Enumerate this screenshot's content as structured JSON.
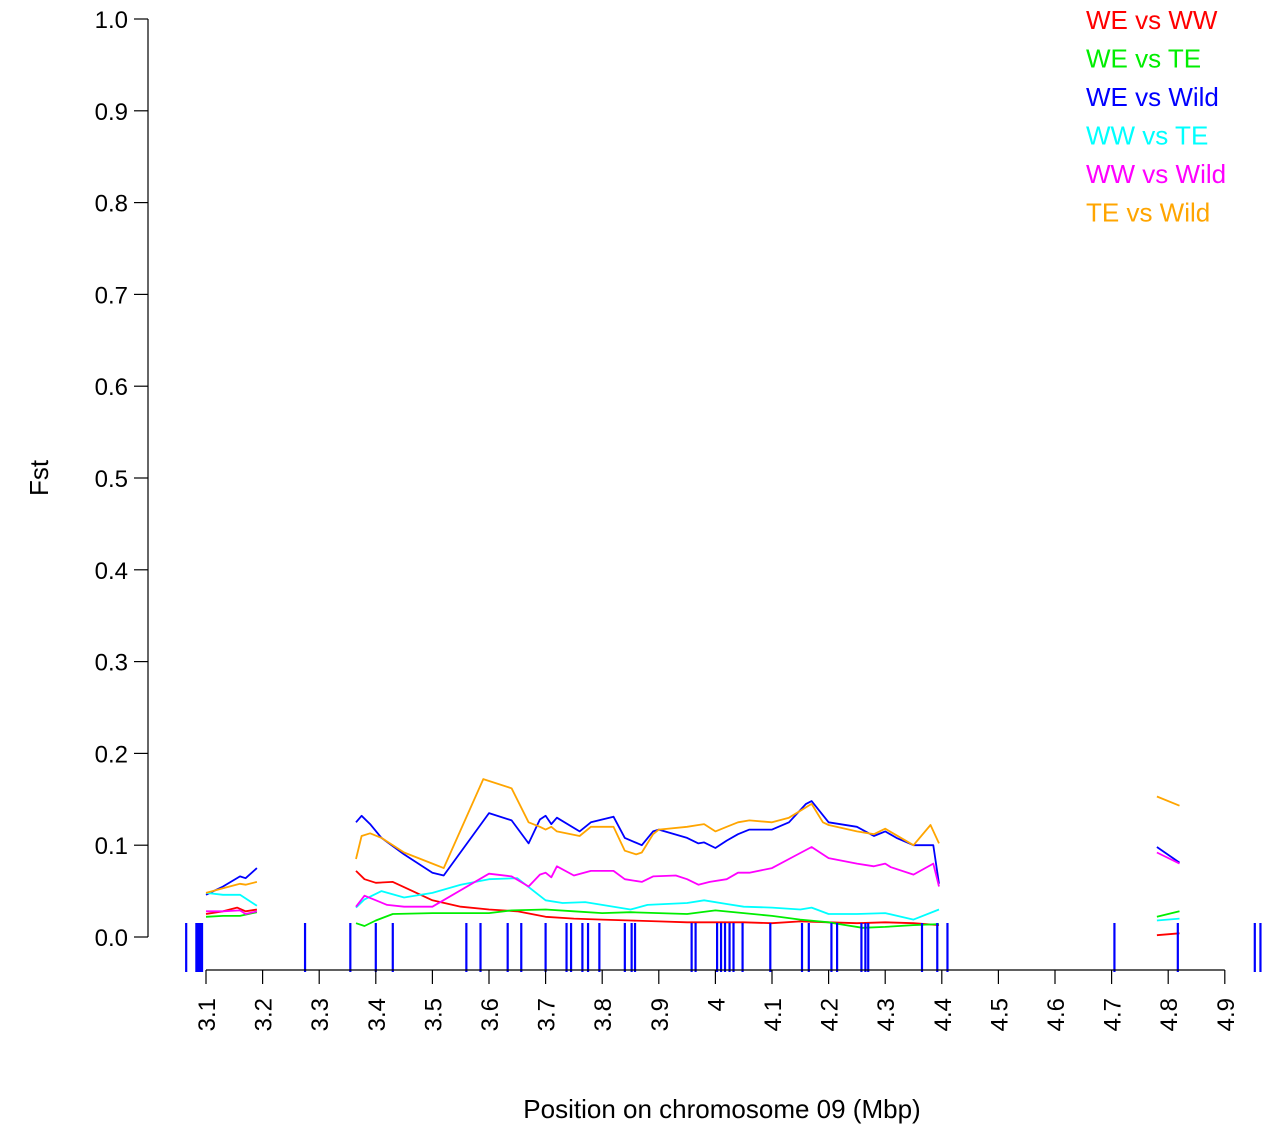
{
  "chart_data": {
    "type": "line",
    "title": "",
    "xlabel": "Position on chromosome 09 (Mbp)",
    "ylabel": "Fst",
    "xlim": [
      3.05,
      4.95
    ],
    "ylim": [
      0,
      1
    ],
    "x_ticks": [
      3.1,
      3.2,
      3.3,
      3.4,
      3.5,
      3.6,
      3.7,
      3.8,
      3.9,
      4.0,
      4.1,
      4.2,
      4.3,
      4.4,
      4.5,
      4.6,
      4.7,
      4.8,
      4.9
    ],
    "x_tick_labels": [
      "3.1",
      "3.2",
      "3.3",
      "3.4",
      "3.5",
      "3.6",
      "3.7",
      "3.8",
      "3.9",
      "4",
      "4.1",
      "4.2",
      "4.3",
      "4.4",
      "4.5",
      "4.6",
      "4.7",
      "4.8",
      "4.9"
    ],
    "y_ticks": [
      0.0,
      0.1,
      0.2,
      0.3,
      0.4,
      0.5,
      0.6,
      0.7,
      0.8,
      0.9,
      1.0
    ],
    "y_tick_labels": [
      "0.0",
      "0.1",
      "0.2",
      "0.3",
      "0.4",
      "0.5",
      "0.6",
      "0.7",
      "0.8",
      "0.9",
      "1.0"
    ],
    "grid": false,
    "legend_position": "top-right",
    "series": [
      {
        "name": "WE vs WW",
        "color": "#ff0000",
        "segments": [
          [
            [
              3.1,
              0.025
            ],
            [
              3.13,
              0.028
            ],
            [
              3.155,
              0.032
            ],
            [
              3.17,
              0.028
            ],
            [
              3.19,
              0.03
            ]
          ],
          [
            [
              3.365,
              0.072
            ],
            [
              3.38,
              0.063
            ],
            [
              3.4,
              0.059
            ],
            [
              3.43,
              0.06
            ],
            [
              3.5,
              0.04
            ],
            [
              3.55,
              0.033
            ],
            [
              3.6,
              0.03
            ],
            [
              3.65,
              0.028
            ],
            [
              3.7,
              0.022
            ],
            [
              3.75,
              0.02
            ],
            [
              3.8,
              0.019
            ],
            [
              3.85,
              0.018
            ],
            [
              3.9,
              0.017
            ],
            [
              3.95,
              0.016
            ],
            [
              4.0,
              0.016
            ],
            [
              4.05,
              0.016
            ],
            [
              4.1,
              0.015
            ],
            [
              4.15,
              0.017
            ],
            [
              4.2,
              0.016
            ],
            [
              4.25,
              0.015
            ],
            [
              4.3,
              0.016
            ],
            [
              4.35,
              0.015
            ],
            [
              4.395,
              0.013
            ]
          ],
          [
            [
              4.78,
              0.002
            ],
            [
              4.82,
              0.004
            ]
          ]
        ]
      },
      {
        "name": "WE vs TE",
        "color": "#00ee00",
        "segments": [
          [
            [
              3.1,
              0.022
            ],
            [
              3.13,
              0.023
            ],
            [
              3.16,
              0.023
            ],
            [
              3.19,
              0.027
            ]
          ],
          [
            [
              3.365,
              0.015
            ],
            [
              3.38,
              0.012
            ],
            [
              3.4,
              0.018
            ],
            [
              3.43,
              0.025
            ],
            [
              3.5,
              0.026
            ],
            [
              3.55,
              0.026
            ],
            [
              3.6,
              0.026
            ],
            [
              3.64,
              0.029
            ],
            [
              3.7,
              0.03
            ],
            [
              3.75,
              0.028
            ],
            [
              3.8,
              0.026
            ],
            [
              3.85,
              0.027
            ],
            [
              3.9,
              0.026
            ],
            [
              3.95,
              0.025
            ],
            [
              4.0,
              0.029
            ],
            [
              4.05,
              0.026
            ],
            [
              4.1,
              0.023
            ],
            [
              4.15,
              0.019
            ],
            [
              4.2,
              0.016
            ],
            [
              4.23,
              0.013
            ],
            [
              4.26,
              0.01
            ],
            [
              4.3,
              0.011
            ],
            [
              4.35,
              0.013
            ],
            [
              4.395,
              0.014
            ]
          ],
          [
            [
              4.78,
              0.022
            ],
            [
              4.82,
              0.028
            ]
          ]
        ]
      },
      {
        "name": "WE vs Wild",
        "color": "#0000ff",
        "segments": [
          [
            [
              3.1,
              0.046
            ],
            [
              3.13,
              0.055
            ],
            [
              3.16,
              0.066
            ],
            [
              3.17,
              0.064
            ],
            [
              3.19,
              0.075
            ]
          ],
          [
            [
              3.365,
              0.125
            ],
            [
              3.375,
              0.132
            ],
            [
              3.39,
              0.123
            ],
            [
              3.41,
              0.108
            ],
            [
              3.45,
              0.09
            ],
            [
              3.5,
              0.07
            ],
            [
              3.52,
              0.067
            ],
            [
              3.6,
              0.135
            ],
            [
              3.64,
              0.127
            ],
            [
              3.67,
              0.102
            ],
            [
              3.69,
              0.128
            ],
            [
              3.7,
              0.132
            ],
            [
              3.71,
              0.123
            ],
            [
              3.72,
              0.13
            ],
            [
              3.76,
              0.115
            ],
            [
              3.78,
              0.125
            ],
            [
              3.82,
              0.131
            ],
            [
              3.84,
              0.108
            ],
            [
              3.87,
              0.1
            ],
            [
              3.89,
              0.115
            ],
            [
              3.9,
              0.117
            ],
            [
              3.95,
              0.108
            ],
            [
              3.97,
              0.102
            ],
            [
              3.98,
              0.103
            ],
            [
              4.0,
              0.097
            ],
            [
              4.02,
              0.105
            ],
            [
              4.04,
              0.112
            ],
            [
              4.06,
              0.117
            ],
            [
              4.1,
              0.117
            ],
            [
              4.13,
              0.125
            ],
            [
              4.16,
              0.145
            ],
            [
              4.17,
              0.148
            ],
            [
              4.2,
              0.125
            ],
            [
              4.25,
              0.12
            ],
            [
              4.28,
              0.11
            ],
            [
              4.3,
              0.115
            ],
            [
              4.32,
              0.108
            ],
            [
              4.35,
              0.1
            ],
            [
              4.385,
              0.1
            ],
            [
              4.395,
              0.058
            ]
          ],
          [
            [
              4.78,
              0.098
            ],
            [
              4.82,
              0.081
            ]
          ]
        ]
      },
      {
        "name": "WW vs TE",
        "color": "#00ffff",
        "segments": [
          [
            [
              3.1,
              0.048
            ],
            [
              3.13,
              0.046
            ],
            [
              3.16,
              0.046
            ],
            [
              3.19,
              0.034
            ]
          ],
          [
            [
              3.365,
              0.032
            ],
            [
              3.38,
              0.041
            ],
            [
              3.41,
              0.05
            ],
            [
              3.45,
              0.043
            ],
            [
              3.5,
              0.048
            ],
            [
              3.55,
              0.057
            ],
            [
              3.6,
              0.063
            ],
            [
              3.65,
              0.064
            ],
            [
              3.7,
              0.04
            ],
            [
              3.73,
              0.037
            ],
            [
              3.77,
              0.038
            ],
            [
              3.85,
              0.03
            ],
            [
              3.88,
              0.035
            ],
            [
              3.95,
              0.037
            ],
            [
              3.98,
              0.04
            ],
            [
              4.02,
              0.036
            ],
            [
              4.05,
              0.033
            ],
            [
              4.1,
              0.032
            ],
            [
              4.15,
              0.03
            ],
            [
              4.17,
              0.032
            ],
            [
              4.2,
              0.025
            ],
            [
              4.25,
              0.025
            ],
            [
              4.3,
              0.026
            ],
            [
              4.35,
              0.019
            ],
            [
              4.395,
              0.03
            ]
          ],
          [
            [
              4.78,
              0.018
            ],
            [
              4.82,
              0.02
            ]
          ]
        ]
      },
      {
        "name": "WW vs Wild",
        "color": "#ff00ff",
        "segments": [
          [
            [
              3.1,
              0.028
            ],
            [
              3.13,
              0.028
            ],
            [
              3.16,
              0.029
            ],
            [
              3.17,
              0.025
            ],
            [
              3.19,
              0.028
            ]
          ],
          [
            [
              3.365,
              0.033
            ],
            [
              3.38,
              0.045
            ],
            [
              3.42,
              0.035
            ],
            [
              3.45,
              0.033
            ],
            [
              3.5,
              0.033
            ],
            [
              3.6,
              0.069
            ],
            [
              3.64,
              0.066
            ],
            [
              3.67,
              0.055
            ],
            [
              3.69,
              0.068
            ],
            [
              3.7,
              0.07
            ],
            [
              3.71,
              0.065
            ],
            [
              3.72,
              0.077
            ],
            [
              3.75,
              0.067
            ],
            [
              3.78,
              0.072
            ],
            [
              3.82,
              0.072
            ],
            [
              3.84,
              0.063
            ],
            [
              3.87,
              0.06
            ],
            [
              3.89,
              0.066
            ],
            [
              3.93,
              0.067
            ],
            [
              3.95,
              0.063
            ],
            [
              3.97,
              0.057
            ],
            [
              3.99,
              0.06
            ],
            [
              4.02,
              0.063
            ],
            [
              4.04,
              0.07
            ],
            [
              4.06,
              0.07
            ],
            [
              4.1,
              0.075
            ],
            [
              4.13,
              0.085
            ],
            [
              4.17,
              0.098
            ],
            [
              4.2,
              0.086
            ],
            [
              4.25,
              0.08
            ],
            [
              4.28,
              0.077
            ],
            [
              4.3,
              0.08
            ],
            [
              4.31,
              0.076
            ],
            [
              4.35,
              0.068
            ],
            [
              4.385,
              0.08
            ],
            [
              4.395,
              0.055
            ]
          ],
          [
            [
              4.78,
              0.092
            ],
            [
              4.82,
              0.08
            ]
          ]
        ]
      },
      {
        "name": "TE vs Wild",
        "color": "#ffa500",
        "segments": [
          [
            [
              3.1,
              0.048
            ],
            [
              3.13,
              0.053
            ],
            [
              3.16,
              0.058
            ],
            [
              3.17,
              0.057
            ],
            [
              3.19,
              0.06
            ]
          ],
          [
            [
              3.365,
              0.085
            ],
            [
              3.375,
              0.11
            ],
            [
              3.39,
              0.113
            ],
            [
              3.41,
              0.108
            ],
            [
              3.45,
              0.092
            ],
            [
              3.5,
              0.08
            ],
            [
              3.52,
              0.075
            ],
            [
              3.59,
              0.172
            ],
            [
              3.64,
              0.162
            ],
            [
              3.67,
              0.125
            ],
            [
              3.69,
              0.12
            ],
            [
              3.7,
              0.117
            ],
            [
              3.71,
              0.12
            ],
            [
              3.72,
              0.115
            ],
            [
              3.76,
              0.11
            ],
            [
              3.78,
              0.12
            ],
            [
              3.82,
              0.12
            ],
            [
              3.84,
              0.094
            ],
            [
              3.86,
              0.09
            ],
            [
              3.87,
              0.092
            ],
            [
              3.89,
              0.112
            ],
            [
              3.9,
              0.117
            ],
            [
              3.95,
              0.12
            ],
            [
              3.97,
              0.122
            ],
            [
              3.98,
              0.123
            ],
            [
              4.0,
              0.115
            ],
            [
              4.02,
              0.12
            ],
            [
              4.04,
              0.125
            ],
            [
              4.06,
              0.127
            ],
            [
              4.1,
              0.125
            ],
            [
              4.13,
              0.13
            ],
            [
              4.17,
              0.145
            ],
            [
              4.19,
              0.125
            ],
            [
              4.2,
              0.122
            ],
            [
              4.25,
              0.115
            ],
            [
              4.28,
              0.112
            ],
            [
              4.3,
              0.118
            ],
            [
              4.35,
              0.1
            ],
            [
              4.38,
              0.122
            ],
            [
              4.395,
              0.102
            ]
          ],
          [
            [
              4.78,
              0.153
            ],
            [
              4.82,
              0.143
            ]
          ]
        ]
      }
    ],
    "rug_color": "#0000ff",
    "rug_positions": [
      3.065,
      3.083,
      3.085,
      3.087,
      3.089,
      3.091,
      3.093,
      3.275,
      3.355,
      3.4,
      3.43,
      3.56,
      3.585,
      3.633,
      3.657,
      3.7,
      3.737,
      3.745,
      3.765,
      3.775,
      3.795,
      3.84,
      3.852,
      3.858,
      3.958,
      3.965,
      4.003,
      4.01,
      4.017,
      4.025,
      4.032,
      4.048,
      4.097,
      4.153,
      4.165,
      4.205,
      4.215,
      4.258,
      4.265,
      4.27,
      4.365,
      4.392,
      4.41,
      4.705,
      4.817,
      4.953,
      4.963
    ]
  }
}
